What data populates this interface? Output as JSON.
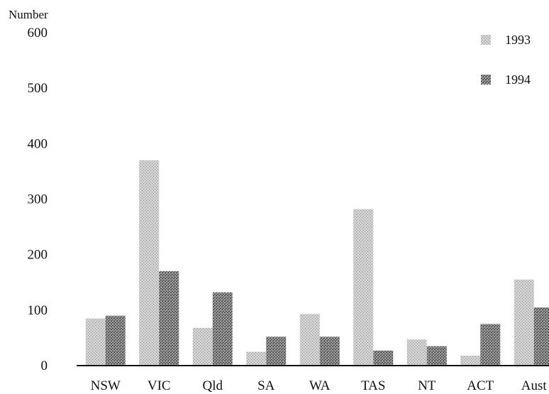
{
  "chart_data": {
    "type": "bar",
    "ylabel": "Number",
    "ylim": [
      0,
      600
    ],
    "yticks": [
      0,
      100,
      200,
      300,
      400,
      500,
      600
    ],
    "categories": [
      "NSW",
      "VIC",
      "Qld",
      "SA",
      "WA",
      "TAS",
      "NT",
      "ACT",
      "Aust"
    ],
    "series": [
      {
        "name": "1993",
        "values": [
          85,
          370,
          68,
          25,
          93,
          282,
          47,
          18,
          155
        ],
        "color": "#b9b9b9"
      },
      {
        "name": "1994",
        "values": [
          90,
          170,
          132,
          52,
          52,
          27,
          35,
          75,
          105
        ],
        "color": "#7d7d7d"
      }
    ],
    "legend_position": "top-right",
    "grid": false
  }
}
